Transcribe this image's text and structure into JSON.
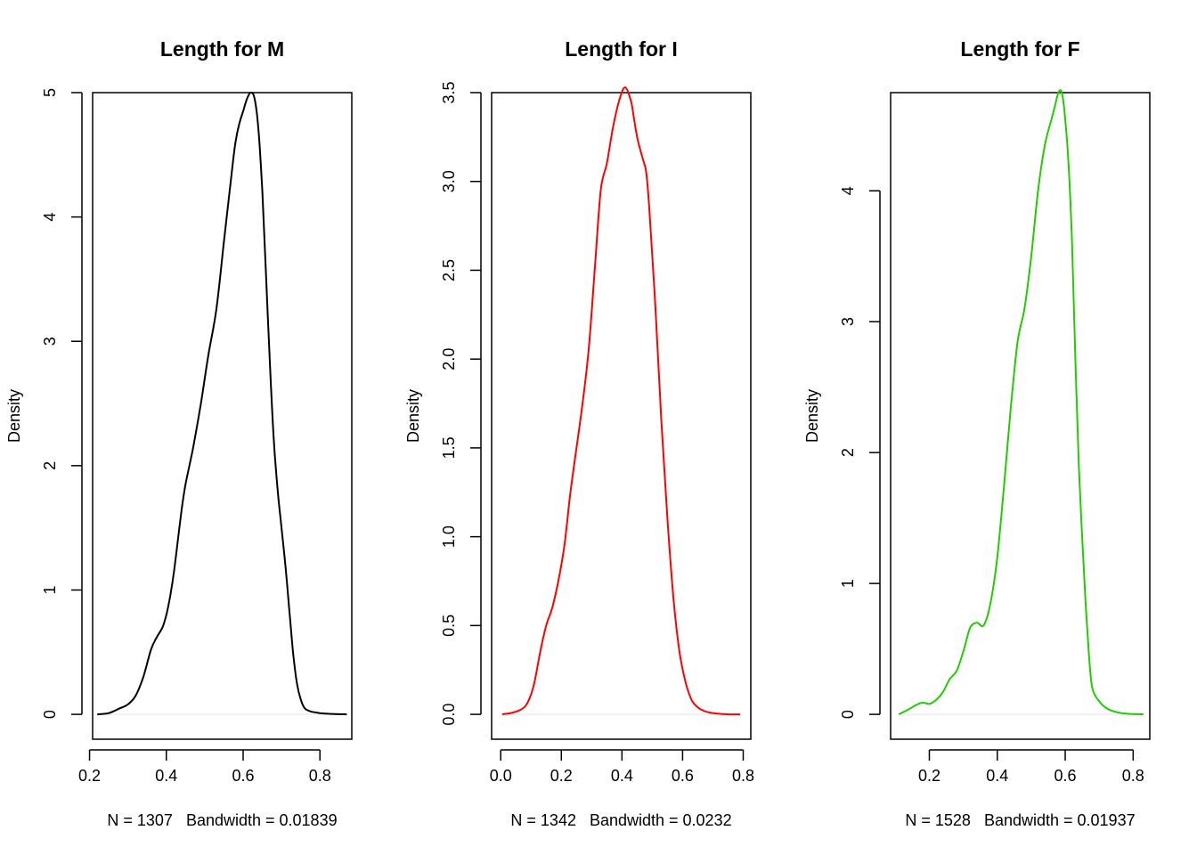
{
  "chart_data": [
    {
      "type": "line",
      "title": "Length for M",
      "xlabel": "N = 1307   Bandwidth = 0.01839",
      "ylabel": "Density",
      "color": "#000000",
      "xlim": [
        0.208,
        0.883
      ],
      "ylim": [
        -0.2,
        5.0
      ],
      "xticks": [
        0.2,
        0.4,
        0.6,
        0.8
      ],
      "xtick_labels": [
        "0.2",
        "0.4",
        "0.6",
        "0.8"
      ],
      "yticks": [
        0,
        1,
        2,
        3,
        4,
        5
      ],
      "ytick_labels": [
        "0",
        "1",
        "2",
        "3",
        "4",
        "5"
      ],
      "x": [
        0.22,
        0.25,
        0.28,
        0.3,
        0.32,
        0.34,
        0.36,
        0.375,
        0.39,
        0.4,
        0.41,
        0.42,
        0.43,
        0.44,
        0.45,
        0.47,
        0.49,
        0.51,
        0.53,
        0.55,
        0.57,
        0.58,
        0.59,
        0.6,
        0.61,
        0.62,
        0.63,
        0.64,
        0.65,
        0.66,
        0.67,
        0.68,
        0.69,
        0.7,
        0.71,
        0.72,
        0.73,
        0.74,
        0.75,
        0.76,
        0.77,
        0.78,
        0.79,
        0.8,
        0.82,
        0.84,
        0.87
      ],
      "y": [
        0.0,
        0.01,
        0.05,
        0.08,
        0.15,
        0.3,
        0.52,
        0.62,
        0.7,
        0.8,
        0.95,
        1.15,
        1.4,
        1.65,
        1.85,
        2.15,
        2.5,
        2.9,
        3.25,
        3.8,
        4.35,
        4.6,
        4.75,
        4.85,
        4.95,
        5.0,
        4.95,
        4.7,
        4.2,
        3.5,
        2.8,
        2.2,
        1.8,
        1.5,
        1.2,
        0.85,
        0.5,
        0.25,
        0.12,
        0.05,
        0.03,
        0.02,
        0.015,
        0.01,
        0.005,
        0.002,
        0.0
      ]
    },
    {
      "type": "line",
      "title": "Length for I",
      "xlabel": "N = 1342   Bandwidth = 0.0232",
      "ylabel": "Density",
      "color": "#ff0000",
      "xlim": [
        -0.03,
        0.825
      ],
      "ylim": [
        -0.14,
        3.5
      ],
      "xticks": [
        0.0,
        0.2,
        0.4,
        0.6,
        0.8
      ],
      "xtick_labels": [
        "0.0",
        "0.2",
        "0.4",
        "0.6",
        "0.8"
      ],
      "yticks": [
        0.0,
        0.5,
        1.0,
        1.5,
        2.0,
        2.5,
        3.0,
        3.5
      ],
      "ytick_labels": [
        "0.0",
        "0.5",
        "1.0",
        "1.5",
        "2.0",
        "2.5",
        "3.0",
        "3.5"
      ],
      "x": [
        0.005,
        0.04,
        0.07,
        0.09,
        0.11,
        0.13,
        0.15,
        0.17,
        0.19,
        0.21,
        0.23,
        0.25,
        0.27,
        0.29,
        0.31,
        0.33,
        0.35,
        0.37,
        0.39,
        0.41,
        0.43,
        0.44,
        0.45,
        0.46,
        0.47,
        0.48,
        0.49,
        0.51,
        0.53,
        0.55,
        0.57,
        0.59,
        0.61,
        0.63,
        0.65,
        0.67,
        0.69,
        0.71,
        0.73,
        0.76,
        0.79
      ],
      "y": [
        0.0,
        0.01,
        0.03,
        0.07,
        0.17,
        0.35,
        0.5,
        0.6,
        0.75,
        0.95,
        1.25,
        1.5,
        1.75,
        2.05,
        2.5,
        2.95,
        3.1,
        3.3,
        3.45,
        3.53,
        3.45,
        3.35,
        3.25,
        3.18,
        3.12,
        3.05,
        2.85,
        2.3,
        1.65,
        1.1,
        0.65,
        0.35,
        0.18,
        0.08,
        0.04,
        0.02,
        0.01,
        0.005,
        0.002,
        0.0,
        0.0
      ]
    },
    {
      "type": "line",
      "title": "Length for F",
      "xlabel": "N = 1528   Bandwidth = 0.01937",
      "ylabel": "Density",
      "color": "#22cc00",
      "xlim": [
        0.086,
        0.849
      ],
      "ylim": [
        -0.19,
        4.75
      ],
      "xticks": [
        0.2,
        0.4,
        0.6,
        0.8
      ],
      "xtick_labels": [
        "0.2",
        "0.4",
        "0.6",
        "0.8"
      ],
      "yticks": [
        0,
        1,
        2,
        3,
        4
      ],
      "ytick_labels": [
        "0",
        "1",
        "2",
        "3",
        "4"
      ],
      "x": [
        0.11,
        0.14,
        0.16,
        0.18,
        0.2,
        0.22,
        0.24,
        0.26,
        0.28,
        0.3,
        0.32,
        0.34,
        0.36,
        0.38,
        0.4,
        0.42,
        0.44,
        0.46,
        0.48,
        0.5,
        0.52,
        0.54,
        0.56,
        0.57,
        0.58,
        0.59,
        0.6,
        0.61,
        0.62,
        0.63,
        0.64,
        0.65,
        0.66,
        0.67,
        0.68,
        0.7,
        0.72,
        0.74,
        0.76,
        0.78,
        0.8,
        0.83
      ],
      "y": [
        0.0,
        0.04,
        0.07,
        0.09,
        0.08,
        0.11,
        0.17,
        0.27,
        0.33,
        0.48,
        0.66,
        0.7,
        0.68,
        0.85,
        1.2,
        1.75,
        2.35,
        2.85,
        3.1,
        3.5,
        4.0,
        4.35,
        4.55,
        4.65,
        4.75,
        4.75,
        4.55,
        4.2,
        3.6,
        2.7,
        1.9,
        1.35,
        0.85,
        0.45,
        0.2,
        0.1,
        0.05,
        0.025,
        0.012,
        0.005,
        0.002,
        0.0
      ]
    }
  ]
}
